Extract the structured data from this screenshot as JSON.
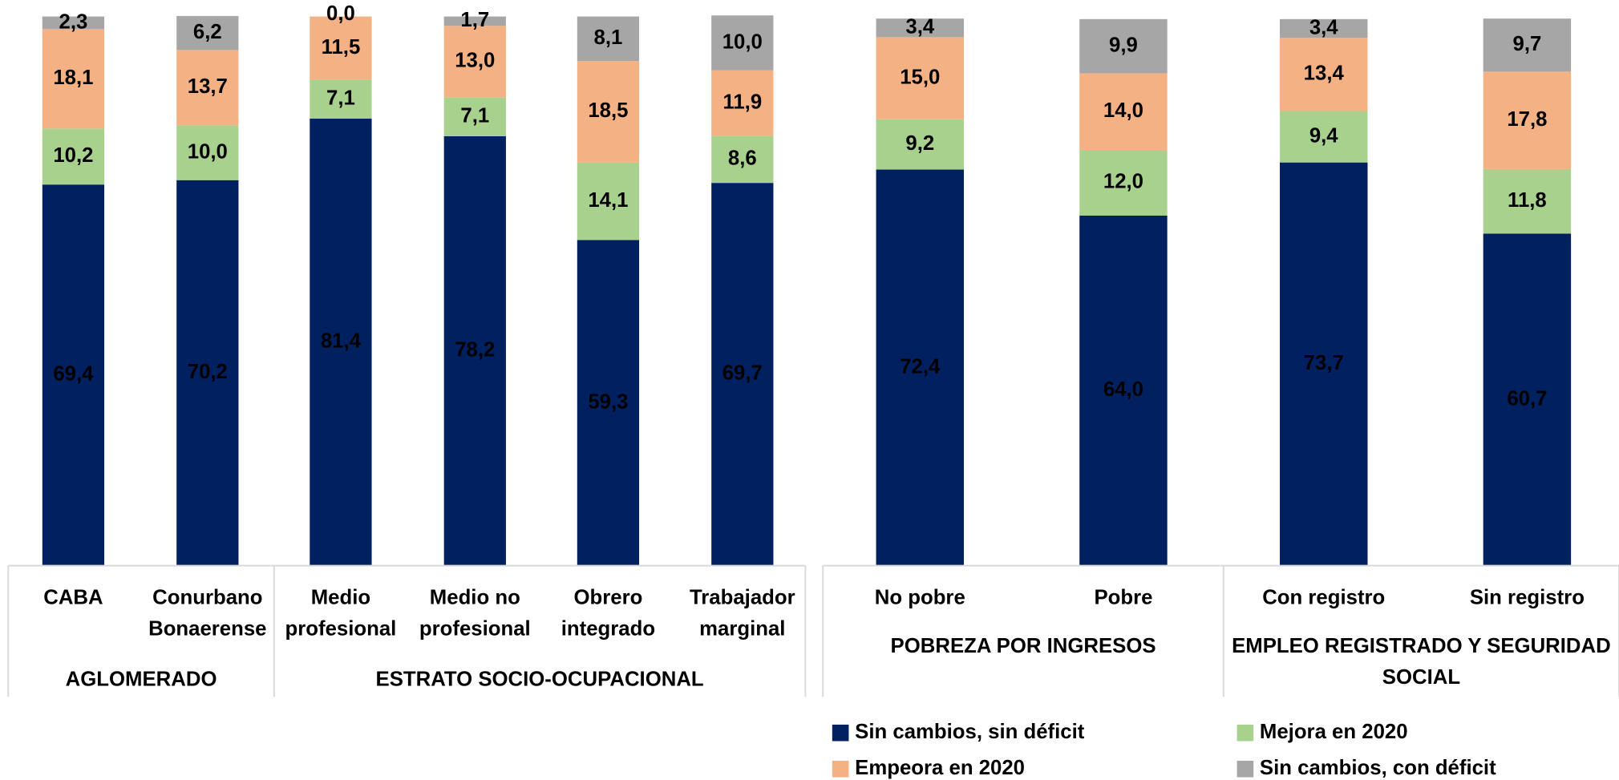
{
  "chart_data": [
    {
      "type": "stacked_bar",
      "categories": [
        [
          "CABA"
        ],
        [
          "Conurbano",
          "Bonaerense"
        ],
        [
          "Medio",
          "profesional"
        ],
        [
          "Medio no",
          "profesional"
        ],
        [
          "Obrero",
          "integrado"
        ],
        [
          "Trabajador",
          "marginal"
        ]
      ],
      "groups": [
        {
          "label": [
            "AGLOMERADO"
          ],
          "count": 2
        },
        {
          "label": [
            "ESTRATO SOCIO-OCUPACIONAL"
          ],
          "count": 4
        }
      ],
      "ylim": [
        0,
        100
      ],
      "series": [
        {
          "name": "Sin cambios, sin déficit",
          "color": "#002060",
          "values": [
            69.4,
            70.2,
            81.4,
            78.2,
            59.3,
            69.7
          ],
          "value_labels": [
            "69,4",
            "70,2",
            "81,4",
            "78,2",
            "59,3",
            "69,7"
          ]
        },
        {
          "name": "Mejora en 2020",
          "color": "#a9d18e",
          "values": [
            10.2,
            10.0,
            7.1,
            7.1,
            14.1,
            8.6
          ],
          "value_labels": [
            "10,2",
            "10,0",
            "7,1",
            "7,1",
            "14,1",
            "8,6"
          ]
        },
        {
          "name": "Empeora en 2020",
          "color": "#f4b183",
          "values": [
            18.1,
            13.7,
            11.5,
            13.0,
            18.5,
            11.9
          ],
          "value_labels": [
            "18,1",
            "13,7",
            "11,5",
            "13,0",
            "18,5",
            "11,9"
          ]
        },
        {
          "name": "Sin cambios, con déficit",
          "color": "#a6a6a6",
          "values": [
            2.3,
            6.2,
            0.0,
            1.7,
            8.1,
            10.0
          ],
          "value_labels": [
            "2,3",
            "6,2",
            "0,0",
            "1,7",
            "8,1",
            "10,0"
          ]
        }
      ]
    },
    {
      "type": "stacked_bar",
      "categories": [
        [
          "No pobre"
        ],
        [
          "Pobre"
        ],
        [
          "Con registro"
        ],
        [
          "Sin registro"
        ]
      ],
      "groups": [
        {
          "label": [
            "POBREZA POR INGRESOS"
          ],
          "count": 2
        },
        {
          "label": [
            "EMPLEO REGISTRADO Y SEGURIDAD",
            "SOCIAL"
          ],
          "count": 2
        }
      ],
      "ylim": [
        0,
        100
      ],
      "series": [
        {
          "name": "Sin cambios, sin déficit",
          "color": "#002060",
          "values": [
            72.4,
            64.0,
            73.7,
            60.7
          ],
          "value_labels": [
            "72,4",
            "64,0",
            "73,7",
            "60,7"
          ]
        },
        {
          "name": "Mejora en 2020",
          "color": "#a9d18e",
          "values": [
            9.2,
            12.0,
            9.4,
            11.8
          ],
          "value_labels": [
            "9,2",
            "12,0",
            "9,4",
            "11,8"
          ]
        },
        {
          "name": "Empeora en 2020",
          "color": "#f4b183",
          "values": [
            15.0,
            14.0,
            13.4,
            17.8
          ],
          "value_labels": [
            "15,0",
            "14,0",
            "13,4",
            "17,8"
          ]
        },
        {
          "name": "Sin cambios, con déficit",
          "color": "#a6a6a6",
          "values": [
            3.4,
            9.9,
            3.4,
            9.7
          ],
          "value_labels": [
            "3,4",
            "9,9",
            "3,4",
            "9,7"
          ]
        }
      ]
    }
  ]
}
